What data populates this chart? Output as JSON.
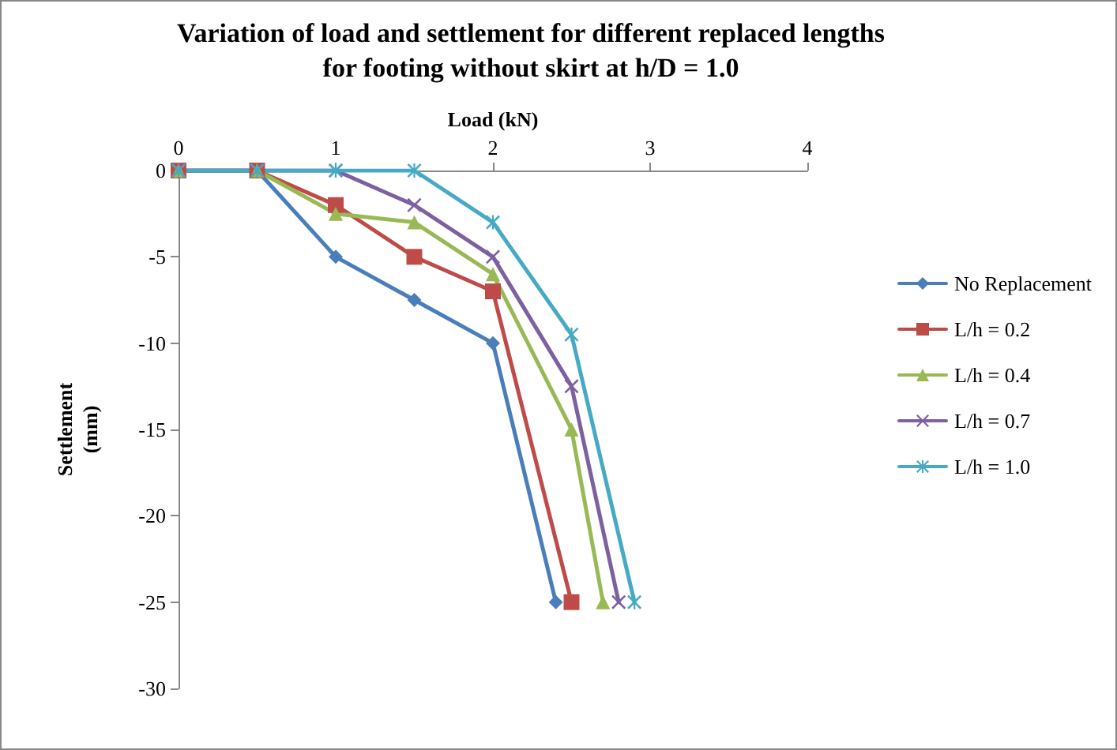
{
  "chart_data": {
    "type": "line",
    "title": "Variation of load and settlement for different replaced lengths\nfor footing without skirt at h/D = 1.0",
    "xlabel": "Load (kN)",
    "ylabel": "Settlement\n(mm)",
    "xlim": [
      0,
      4
    ],
    "xticks": [
      0,
      1,
      2,
      3,
      4
    ],
    "ylim": [
      -30,
      0
    ],
    "yticks": [
      -30,
      -25,
      -20,
      -15,
      -10,
      -5,
      0
    ],
    "grid": false,
    "legend": "right",
    "series": [
      {
        "name": "No Replacement",
        "color": "#4a7ebb",
        "marker": "diamond",
        "x": [
          0,
          0.5,
          1,
          1.5,
          2,
          2.4
        ],
        "values": [
          0,
          0,
          -5,
          -7.5,
          -10,
          -25
        ]
      },
      {
        "name": "L/h = 0.2",
        "color": "#be4b48",
        "marker": "square",
        "x": [
          0,
          0.5,
          1,
          1.5,
          2,
          2.5
        ],
        "values": [
          0,
          0,
          -2,
          -5,
          -7,
          -25
        ]
      },
      {
        "name": "L/h = 0.4",
        "color": "#98b954",
        "marker": "triangle",
        "x": [
          0,
          0.5,
          1,
          1.5,
          2,
          2.5,
          2.7
        ],
        "values": [
          0,
          0,
          -2.5,
          -3,
          -6,
          -15,
          -25
        ]
      },
      {
        "name": "L/h = 0.7",
        "color": "#7d60a0",
        "marker": "cross",
        "x": [
          0,
          0.5,
          1,
          1.5,
          2,
          2.5,
          2.8
        ],
        "values": [
          0,
          0,
          0,
          -2,
          -5,
          -12.5,
          -25
        ]
      },
      {
        "name": "L/h = 1.0",
        "color": "#46aac5",
        "marker": "star",
        "x": [
          0,
          0.5,
          1,
          1.5,
          2,
          2.5,
          2.9
        ],
        "values": [
          0,
          0,
          0,
          0,
          -3,
          -9.5,
          -25
        ]
      }
    ]
  }
}
